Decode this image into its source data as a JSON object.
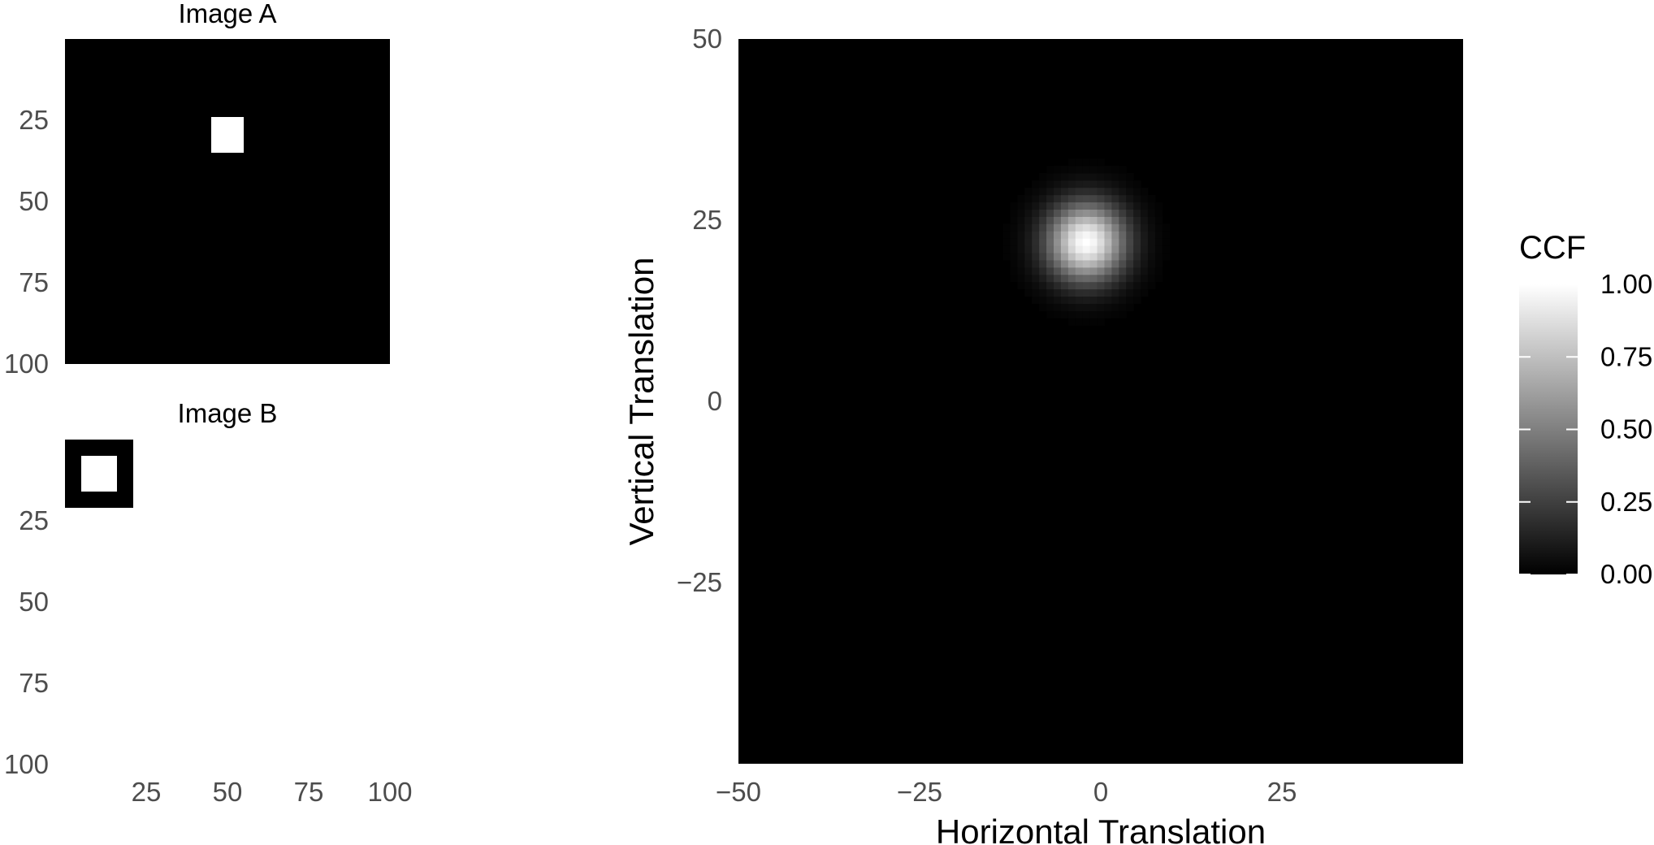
{
  "chart_data": [
    {
      "type": "heatmap",
      "title": "Image A",
      "ylim": [
        0,
        100
      ],
      "xlim": [
        0,
        100
      ],
      "y_ticks": [
        "25",
        "50",
        "75",
        "100"
      ],
      "y_tick_values": [
        25,
        50,
        75,
        100
      ],
      "x_ticks_shown": false,
      "background": "#000000",
      "bright_square": {
        "x_range": [
          45,
          55
        ],
        "y_range": [
          24,
          35
        ],
        "value": 1
      }
    },
    {
      "type": "heatmap",
      "title": "Image B",
      "ylim": [
        0,
        100
      ],
      "xlim": [
        0,
        100
      ],
      "y_ticks": [
        "25",
        "50",
        "75",
        "100"
      ],
      "y_tick_values": [
        25,
        50,
        75,
        100
      ],
      "x_ticks": [
        "25",
        "50",
        "75",
        "100"
      ],
      "x_tick_values": [
        25,
        50,
        75,
        100
      ],
      "image_extent": {
        "x_range": [
          0,
          21
        ],
        "y_range": [
          0,
          21
        ]
      },
      "background": "#000000",
      "bright_square": {
        "x_range": [
          5,
          16
        ],
        "y_range": [
          5,
          16
        ],
        "value": 1
      }
    },
    {
      "type": "heatmap",
      "xlabel": "Horizontal Translation",
      "ylabel": "Vertical Translation",
      "xlim": [
        -50,
        50
      ],
      "ylim": [
        -50,
        50
      ],
      "x_ticks": [
        "−50",
        "−25",
        "0",
        "25"
      ],
      "x_tick_values": [
        -50,
        -25,
        0,
        25
      ],
      "y_ticks": [
        "50",
        "25",
        "0",
        "−25"
      ],
      "y_tick_values": [
        50,
        25,
        0,
        -25
      ],
      "peak": {
        "x": -2,
        "y": 22,
        "value": 1.0
      },
      "support_radius": 11,
      "background": "#000000",
      "legend": {
        "title": "CCF",
        "labels": [
          "1.00",
          "0.75",
          "0.50",
          "0.25",
          "0.00"
        ],
        "values": [
          1.0,
          0.75,
          0.5,
          0.25,
          0.0
        ],
        "range": [
          0,
          1
        ],
        "placement": "right"
      }
    }
  ]
}
